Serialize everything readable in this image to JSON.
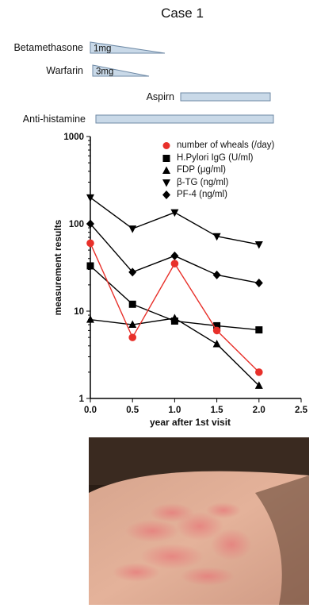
{
  "case_title": "Case 1",
  "timeline": {
    "drugs": [
      {
        "label": "Betamethasone",
        "dose": "1mg",
        "shape": "taper"
      },
      {
        "label": "Warfarin",
        "dose": "3mg",
        "shape": "taper"
      },
      {
        "label": "Aspirn",
        "dose": "",
        "shape": "bar"
      },
      {
        "label": "Anti-histamine",
        "dose": "",
        "shape": "bar"
      }
    ],
    "colors": {
      "fill": "#c9d9e8",
      "stroke": "#6f8aa6"
    }
  },
  "chart_data": {
    "type": "line",
    "xlabel": "year after 1st visit",
    "ylabel": "measurement results",
    "y_scale": "log",
    "xlim": [
      0,
      2.5
    ],
    "ylim": [
      1,
      1000
    ],
    "x_ticks": [
      "0.0",
      "0.5",
      "1.0",
      "1.5",
      "2.0",
      "2.5"
    ],
    "y_ticks": [
      "1",
      "10",
      "100",
      "1000"
    ],
    "legend_position": "top-right",
    "series": [
      {
        "name": "number of wheals (/day)",
        "marker": "circle",
        "color": "#e8302a",
        "x": [
          0,
          0.5,
          1.0,
          1.5,
          2.0
        ],
        "y": [
          60,
          5,
          35,
          6,
          2
        ]
      },
      {
        "name": "H.Pylori IgG (U/ml)",
        "marker": "square",
        "color": "#000000",
        "x": [
          0,
          0.5,
          1.0,
          1.5,
          2.0
        ],
        "y": [
          33,
          12,
          7.7,
          6.8,
          6.1
        ]
      },
      {
        "name": "FDP (μg/ml)",
        "marker": "triangle-up",
        "color": "#000000",
        "x": [
          0,
          0.5,
          1.0,
          1.5,
          2.0
        ],
        "y": [
          8,
          7,
          8.3,
          4.2,
          1.4
        ]
      },
      {
        "name": "β-TG (ng/ml)",
        "marker": "triangle-down",
        "color": "#000000",
        "x": [
          0,
          0.5,
          1.0,
          1.5,
          2.0
        ],
        "y": [
          200,
          88,
          135,
          72,
          58
        ]
      },
      {
        "name": "PF-4 (ng/ml)",
        "marker": "diamond",
        "color": "#000000",
        "x": [
          0,
          0.5,
          1.0,
          1.5,
          2.0
        ],
        "y": [
          100,
          28,
          43,
          26,
          21
        ]
      }
    ]
  },
  "photo": {
    "subject": "skin-wheals-photo"
  }
}
